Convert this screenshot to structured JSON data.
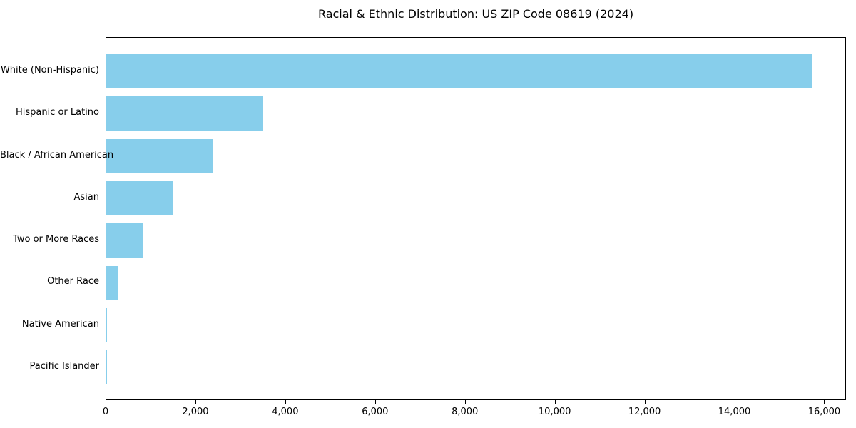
{
  "chart_data": {
    "type": "bar",
    "orientation": "horizontal",
    "title": "Racial & Ethnic Distribution: US ZIP Code 08619 (2024)",
    "categories": [
      "White (Non-Hispanic)",
      "Hispanic or Latino",
      "Black / African American",
      "Asian",
      "Two or More Races",
      "Other Race",
      "Native American",
      "Pacific Islander"
    ],
    "values": [
      15700,
      3480,
      2380,
      1470,
      810,
      260,
      15,
      5
    ],
    "xlabel": "",
    "ylabel": "",
    "xlim": [
      0,
      16485
    ],
    "x_ticks": [
      0,
      2000,
      4000,
      6000,
      8000,
      10000,
      12000,
      14000,
      16000
    ],
    "x_tick_labels": [
      "0",
      "2,000",
      "4,000",
      "6,000",
      "8,000",
      "10,000",
      "12,000",
      "14,000",
      "16,000"
    ],
    "bar_color": "#87CEEB",
    "background_color": "#ffffff",
    "spine_color": "#000000",
    "grid": false,
    "legend": false
  }
}
